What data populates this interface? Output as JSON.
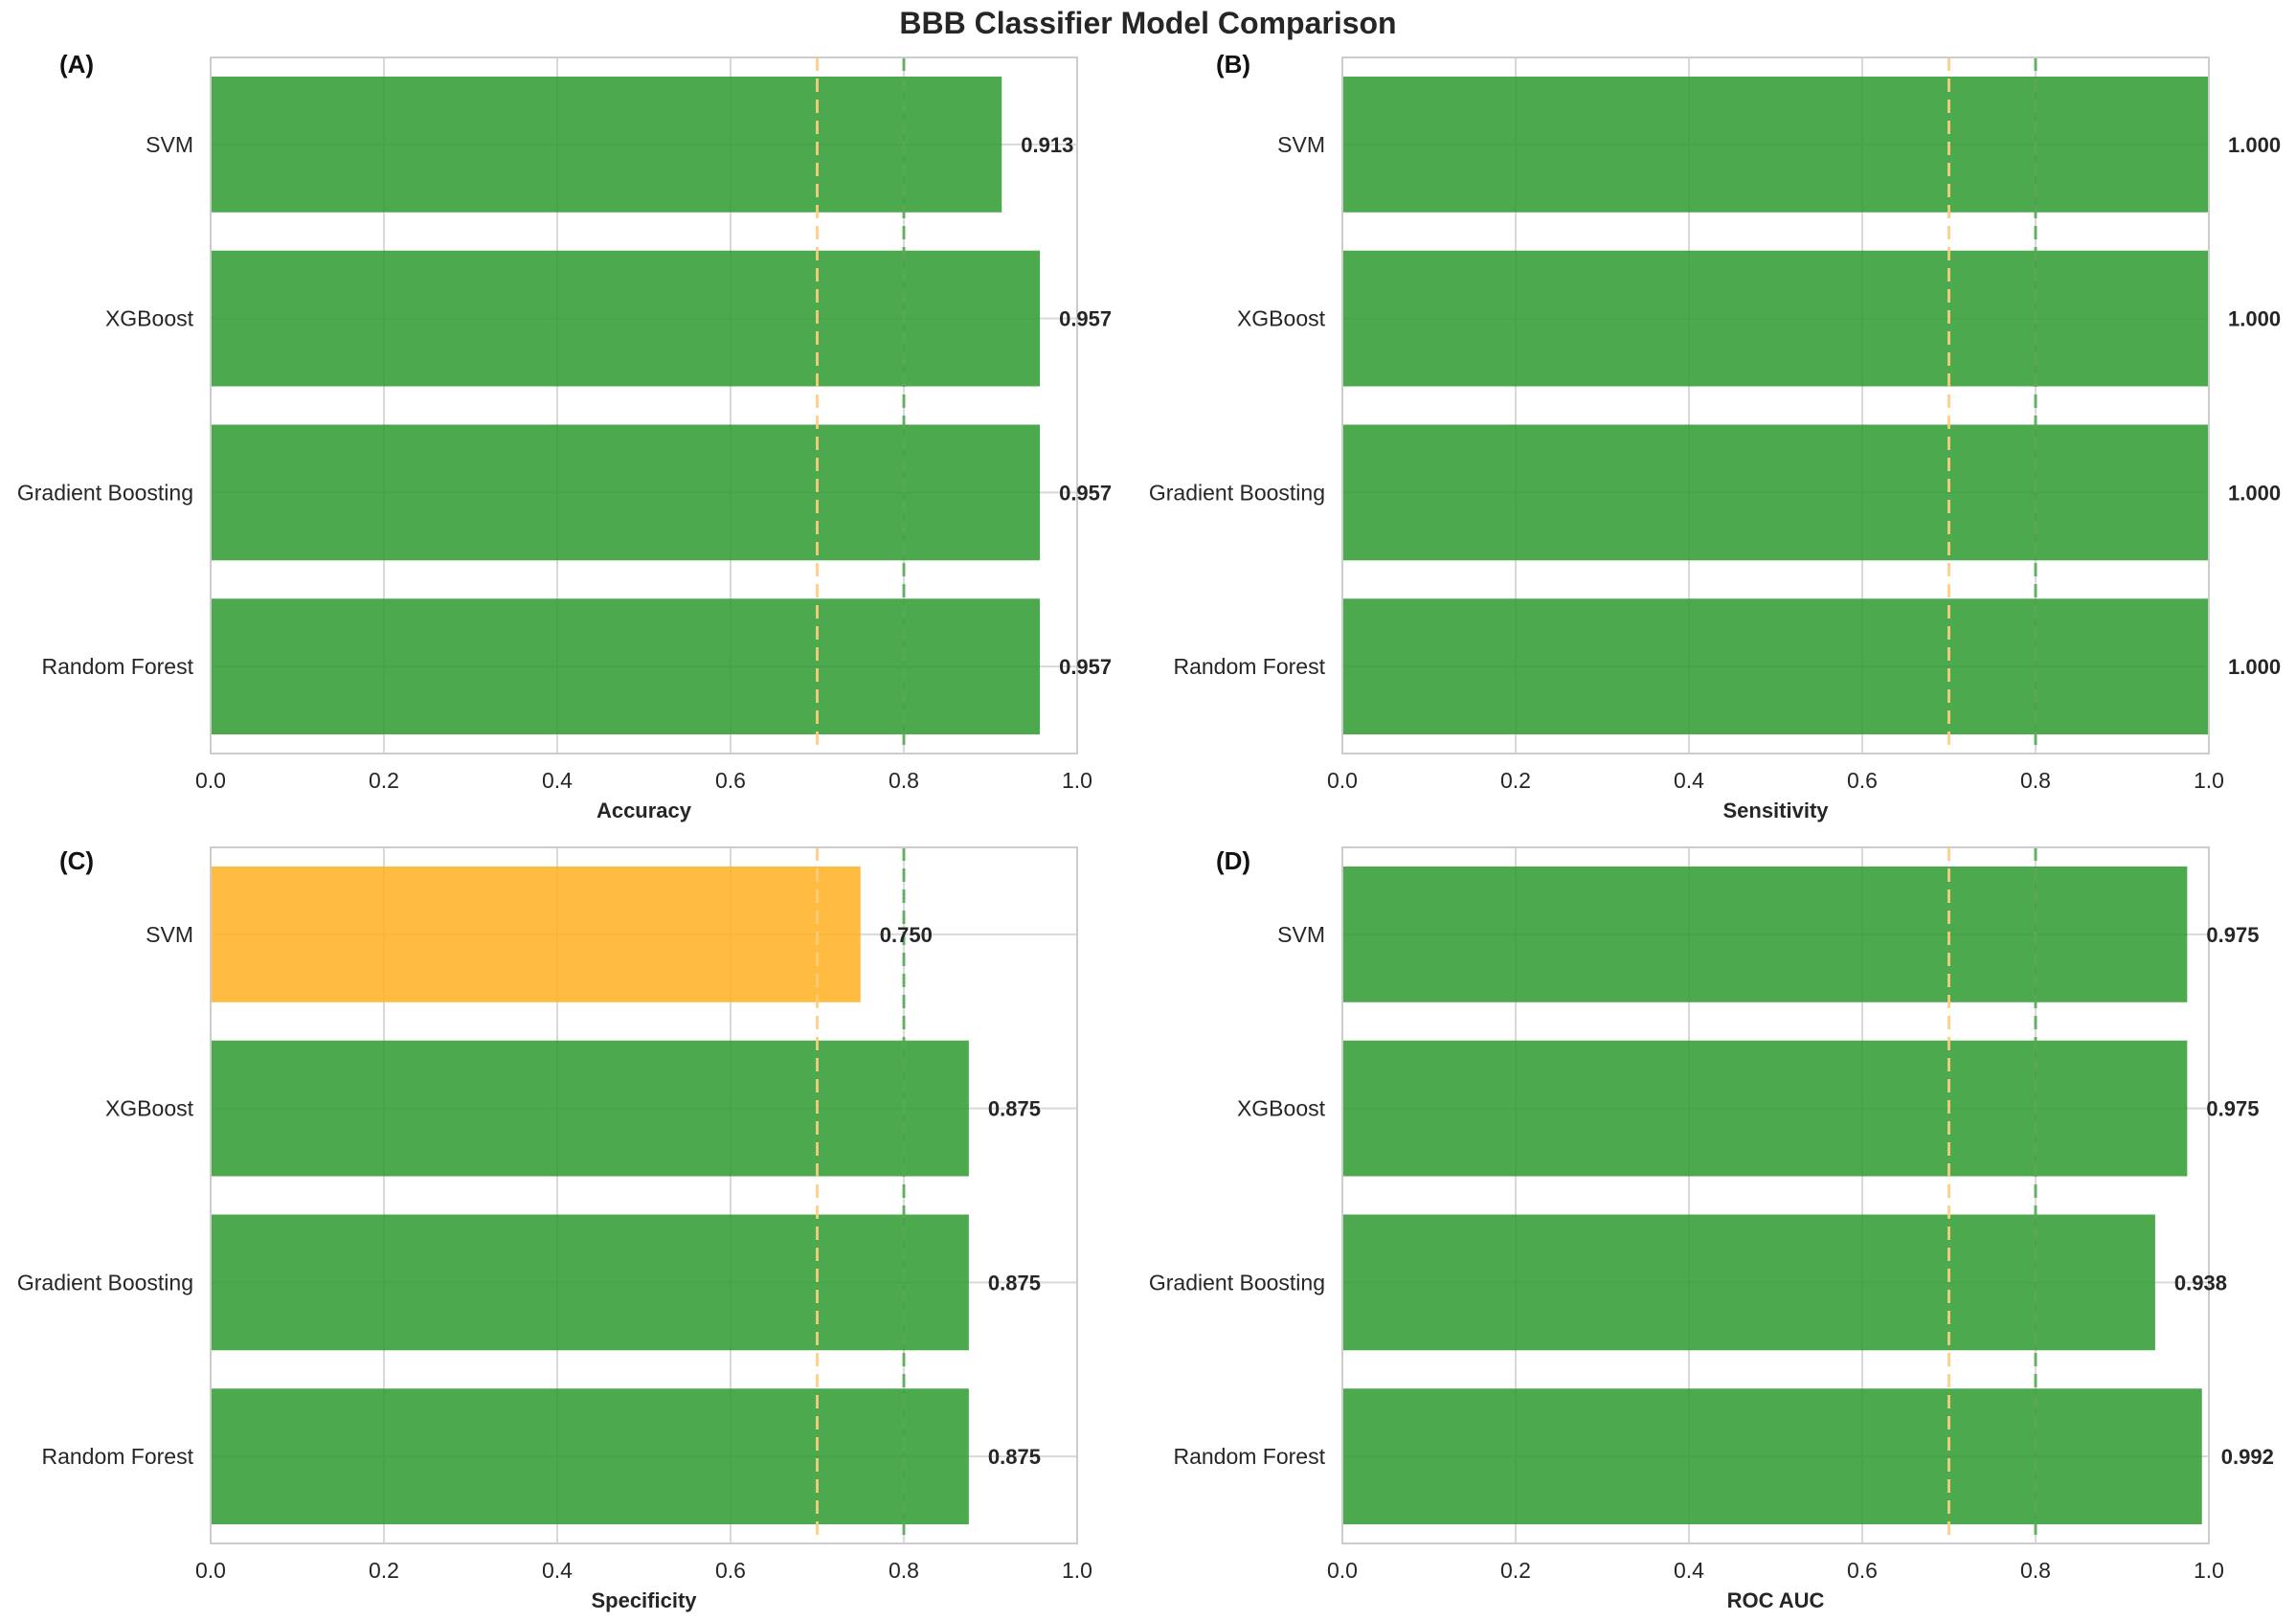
{
  "title": "BBB Classifier Model Comparison",
  "colors": {
    "good": "#2e9a2e",
    "warn": "#ffb020",
    "threshold_low": "#ffcc80",
    "threshold_high": "#5aa85a",
    "grid": "#d9d9d9",
    "spine": "#cccccc"
  },
  "chart_data": [
    {
      "panel_label": "(A)",
      "type": "bar",
      "orientation": "horizontal",
      "xlabel": "Accuracy",
      "xlim": [
        0,
        1.0
      ],
      "xticks": [
        "0.0",
        "0.2",
        "0.4",
        "0.6",
        "0.8",
        "1.0"
      ],
      "categories": [
        "SVM",
        "XGBoost",
        "Gradient Boosting",
        "Random Forest"
      ],
      "values": [
        0.913,
        0.957,
        0.957,
        0.957
      ],
      "value_labels": [
        "0.913",
        "0.957",
        "0.957",
        "0.957"
      ],
      "bar_colors": [
        "good",
        "good",
        "good",
        "good"
      ],
      "thresholds": [
        0.7,
        0.8
      ]
    },
    {
      "panel_label": "(B)",
      "type": "bar",
      "orientation": "horizontal",
      "xlabel": "Sensitivity",
      "xlim": [
        0,
        1.0
      ],
      "xticks": [
        "0.0",
        "0.2",
        "0.4",
        "0.6",
        "0.8",
        "1.0"
      ],
      "categories": [
        "SVM",
        "XGBoost",
        "Gradient Boosting",
        "Random Forest"
      ],
      "values": [
        1.0,
        1.0,
        1.0,
        1.0
      ],
      "value_labels": [
        "1.000",
        "1.000",
        "1.000",
        "1.000"
      ],
      "bar_colors": [
        "good",
        "good",
        "good",
        "good"
      ],
      "thresholds": [
        0.7,
        0.8
      ]
    },
    {
      "panel_label": "(C)",
      "type": "bar",
      "orientation": "horizontal",
      "xlabel": "Specificity",
      "xlim": [
        0,
        1.0
      ],
      "xticks": [
        "0.0",
        "0.2",
        "0.4",
        "0.6",
        "0.8",
        "1.0"
      ],
      "categories": [
        "SVM",
        "XGBoost",
        "Gradient Boosting",
        "Random Forest"
      ],
      "values": [
        0.75,
        0.875,
        0.875,
        0.875
      ],
      "value_labels": [
        "0.750",
        "0.875",
        "0.875",
        "0.875"
      ],
      "bar_colors": [
        "warn",
        "good",
        "good",
        "good"
      ],
      "thresholds": [
        0.7,
        0.8
      ]
    },
    {
      "panel_label": "(D)",
      "type": "bar",
      "orientation": "horizontal",
      "xlabel": "ROC AUC",
      "xlim": [
        0,
        1.0
      ],
      "xticks": [
        "0.0",
        "0.2",
        "0.4",
        "0.6",
        "0.8",
        "1.0"
      ],
      "categories": [
        "SVM",
        "XGBoost",
        "Gradient Boosting",
        "Random Forest"
      ],
      "values": [
        0.975,
        0.975,
        0.938,
        0.992
      ],
      "value_labels": [
        "0.975",
        "0.975",
        "0.938",
        "0.992"
      ],
      "bar_colors": [
        "good",
        "good",
        "good",
        "good"
      ],
      "thresholds": [
        0.7,
        0.8
      ]
    }
  ]
}
